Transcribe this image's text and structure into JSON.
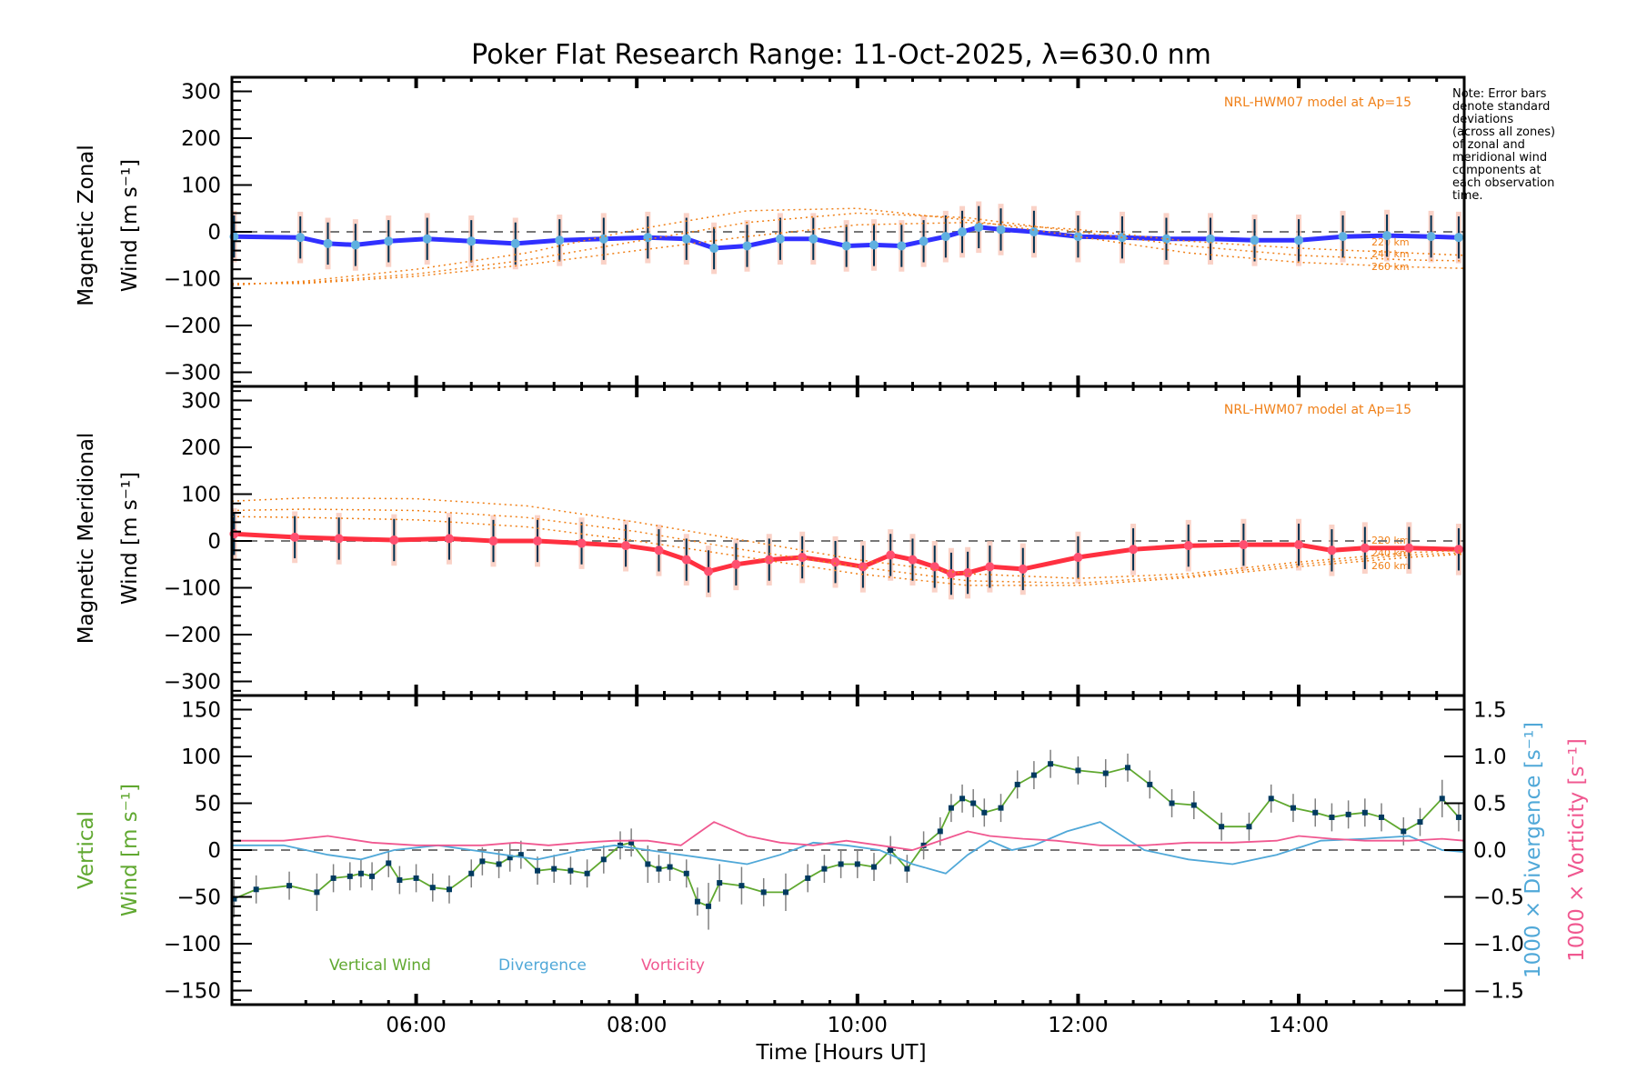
{
  "chart_data": [
    {
      "type": "line",
      "panel": "zonal",
      "title": "Poker Flat Research Range: 11-Oct-2025, λ=630.0 nm",
      "ylabel_line1": "Magnetic Zonal",
      "ylabel_line2": "Wind [m s⁻¹]",
      "ylim": [
        -330,
        330
      ],
      "yticks": [
        -300,
        -200,
        -100,
        0,
        100,
        200,
        300
      ],
      "xlim": [
        4.33,
        15.5
      ],
      "model_label": "NRL-HWM07 model at Ap=15",
      "model_altitudes": [
        "220 km",
        "240 km",
        "260 km"
      ],
      "series": [
        {
          "name": "Zonal wind (mean)",
          "color": "#3030ff",
          "x": [
            4.35,
            4.95,
            5.2,
            5.45,
            5.75,
            6.1,
            6.5,
            6.9,
            7.3,
            7.7,
            8.1,
            8.45,
            8.7,
            9.0,
            9.3,
            9.6,
            9.9,
            10.15,
            10.4,
            10.6,
            10.8,
            10.95,
            11.1,
            11.3,
            11.6,
            12.0,
            12.4,
            12.8,
            13.2,
            13.6,
            14.0,
            14.4,
            14.8,
            15.2,
            15.45
          ],
          "y": [
            -10,
            -12,
            -25,
            -28,
            -20,
            -15,
            -20,
            -25,
            -18,
            -15,
            -12,
            -15,
            -35,
            -30,
            -15,
            -15,
            -30,
            -28,
            -30,
            -20,
            -10,
            0,
            10,
            5,
            0,
            -10,
            -12,
            -15,
            -15,
            -18,
            -18,
            -10,
            -8,
            -10,
            -12
          ]
        },
        {
          "name": "HWM07 220 km",
          "color": "#f08018",
          "x": [
            4.33,
            5,
            6,
            7,
            8,
            9,
            10,
            11,
            12,
            13,
            14,
            15,
            15.5
          ],
          "y": [
            -110,
            -110,
            -95,
            -70,
            -40,
            -10,
            15,
            20,
            5,
            -20,
            -35,
            -45,
            -50
          ]
        },
        {
          "name": "HWM07 240 km",
          "color": "#f08018",
          "x": [
            4.33,
            5,
            6,
            7,
            8,
            9,
            10,
            11,
            12,
            13,
            14,
            15,
            15.5
          ],
          "y": [
            -112,
            -108,
            -90,
            -60,
            -20,
            20,
            40,
            30,
            0,
            -30,
            -50,
            -60,
            -62
          ]
        },
        {
          "name": "HWM07 260 km",
          "color": "#f08018",
          "x": [
            4.33,
            5,
            6,
            7,
            8,
            9,
            10,
            11,
            12,
            13,
            14,
            15,
            15.5
          ],
          "y": [
            -114,
            -105,
            -80,
            -45,
            5,
            45,
            50,
            25,
            -10,
            -45,
            -65,
            -75,
            -78
          ]
        }
      ]
    },
    {
      "type": "line",
      "panel": "meridional",
      "ylabel_line1": "Magnetic Meridional",
      "ylabel_line2": "Wind [m s⁻¹]",
      "ylim": [
        -330,
        330
      ],
      "yticks": [
        -300,
        -200,
        -100,
        0,
        100,
        200,
        300
      ],
      "xlim": [
        4.33,
        15.5
      ],
      "model_label": "NRL-HWM07 model at Ap=15",
      "model_altitudes": [
        "220 km",
        "240 km",
        "260 km"
      ],
      "series": [
        {
          "name": "Meridional wind (mean)",
          "color": "#ff3040",
          "x": [
            4.35,
            4.9,
            5.3,
            5.8,
            6.3,
            6.7,
            7.1,
            7.5,
            7.9,
            8.2,
            8.45,
            8.65,
            8.9,
            9.2,
            9.5,
            9.8,
            10.05,
            10.3,
            10.5,
            10.7,
            10.85,
            11.0,
            11.2,
            11.5,
            12.0,
            12.5,
            13.0,
            13.5,
            14.0,
            14.3,
            14.6,
            15.0,
            15.45
          ],
          "y": [
            15,
            8,
            5,
            2,
            5,
            0,
            0,
            -5,
            -10,
            -20,
            -40,
            -65,
            -50,
            -40,
            -35,
            -45,
            -55,
            -30,
            -40,
            -55,
            -70,
            -68,
            -55,
            -60,
            -35,
            -18,
            -10,
            -8,
            -8,
            -20,
            -15,
            -15,
            -18
          ]
        },
        {
          "name": "HWM07 220 km",
          "color": "#f08018",
          "x": [
            4.33,
            5,
            6,
            7,
            8,
            9,
            10,
            11,
            12,
            13,
            14,
            15,
            15.5
          ],
          "y": [
            85,
            92,
            90,
            75,
            40,
            0,
            -40,
            -70,
            -80,
            -70,
            -45,
            -25,
            -20
          ]
        },
        {
          "name": "HWM07 240 km",
          "color": "#f08018",
          "x": [
            4.33,
            5,
            6,
            7,
            8,
            9,
            10,
            11,
            12,
            13,
            14,
            15,
            15.5
          ],
          "y": [
            65,
            68,
            65,
            50,
            20,
            -20,
            -55,
            -85,
            -90,
            -75,
            -50,
            -30,
            -25
          ]
        },
        {
          "name": "HWM07 260 km",
          "color": "#f08018",
          "x": [
            4.33,
            5,
            6,
            7,
            8,
            9,
            10,
            11,
            12,
            13,
            14,
            15,
            15.5
          ],
          "y": [
            52,
            50,
            45,
            30,
            0,
            -35,
            -70,
            -95,
            -95,
            -78,
            -55,
            -35,
            -28
          ]
        }
      ]
    },
    {
      "type": "line",
      "panel": "vertical",
      "ylabel_left_line1": "Vertical",
      "ylabel_left_line2": "Wind [m s⁻¹]",
      "ylabel_right1": "1000 × Divergence [s⁻¹]",
      "ylabel_right2": "1000 × Vorticity [s⁻¹]",
      "ylim": [
        -165,
        165
      ],
      "yticks": [
        -150,
        -100,
        -50,
        0,
        50,
        100,
        150
      ],
      "ylim_right": [
        -1.65,
        1.65
      ],
      "yticks_right": [
        "-1.5",
        "-1.0",
        "-0.5",
        "0.0",
        "0.5",
        "1.0",
        "1.5"
      ],
      "xlim": [
        4.33,
        15.5
      ],
      "xticks": [
        "06:00",
        "08:00",
        "10:00",
        "12:00",
        "14:00"
      ],
      "xtick_values": [
        6,
        8,
        10,
        12,
        14
      ],
      "xlabel": "Time [Hours UT]",
      "legend": [
        {
          "label": "Vertical Wind",
          "color": "#60a830"
        },
        {
          "label": "Divergence",
          "color": "#50a8d8"
        },
        {
          "label": "Vorticity",
          "color": "#f05890"
        }
      ],
      "legend_position": "bottom-left",
      "series": [
        {
          "name": "Vertical Wind",
          "color": "#60a830",
          "x": [
            4.35,
            4.55,
            4.85,
            5.1,
            5.25,
            5.4,
            5.5,
            5.6,
            5.75,
            5.85,
            6.0,
            6.15,
            6.3,
            6.5,
            6.6,
            6.75,
            6.85,
            6.95,
            7.1,
            7.25,
            7.4,
            7.55,
            7.7,
            7.85,
            7.95,
            8.1,
            8.2,
            8.3,
            8.45,
            8.55,
            8.65,
            8.75,
            8.95,
            9.15,
            9.35,
            9.55,
            9.7,
            9.85,
            10.0,
            10.15,
            10.3,
            10.45,
            10.6,
            10.75,
            10.85,
            10.95,
            11.05,
            11.15,
            11.3,
            11.45,
            11.6,
            11.75,
            12.0,
            12.25,
            12.45,
            12.65,
            12.85,
            13.05,
            13.3,
            13.55,
            13.75,
            13.95,
            14.15,
            14.3,
            14.45,
            14.6,
            14.75,
            14.95,
            15.1,
            15.3,
            15.45
          ],
          "y": [
            -52,
            -42,
            -38,
            -45,
            -30,
            -28,
            -25,
            -28,
            -14,
            -32,
            -30,
            -40,
            -42,
            -25,
            -12,
            -15,
            -8,
            -5,
            -22,
            -20,
            -22,
            -25,
            -10,
            5,
            8,
            -15,
            -20,
            -18,
            -25,
            -55,
            -60,
            -35,
            -38,
            -45,
            -45,
            -30,
            -20,
            -15,
            -15,
            -18,
            0,
            -20,
            5,
            20,
            45,
            55,
            50,
            40,
            45,
            70,
            80,
            92,
            85,
            82,
            88,
            70,
            50,
            48,
            25,
            25,
            55,
            45,
            40,
            35,
            38,
            40,
            35,
            20,
            30,
            55,
            35
          ],
          "err": [
            20,
            15,
            15,
            20,
            15,
            15,
            15,
            15,
            15,
            15,
            15,
            15,
            15,
            15,
            15,
            15,
            15,
            15,
            15,
            15,
            15,
            15,
            15,
            15,
            15,
            20,
            15,
            15,
            15,
            15,
            25,
            20,
            20,
            15,
            20,
            15,
            15,
            15,
            15,
            15,
            15,
            15,
            15,
            15,
            15,
            15,
            15,
            15,
            15,
            15,
            15,
            15,
            15,
            15,
            15,
            15,
            15,
            15,
            15,
            15,
            15,
            15,
            15,
            15,
            15,
            15,
            15,
            15,
            15,
            20,
            15
          ]
        },
        {
          "name": "Divergence",
          "color": "#50a8d8",
          "axis": "right",
          "x": [
            4.33,
            4.8,
            5.2,
            5.5,
            5.8,
            6.2,
            6.5,
            6.8,
            7.1,
            7.5,
            7.8,
            8.1,
            8.4,
            8.7,
            9.0,
            9.3,
            9.6,
            9.9,
            10.2,
            10.5,
            10.65,
            10.8,
            11.0,
            11.2,
            11.4,
            11.6,
            11.9,
            12.2,
            12.6,
            13.0,
            13.4,
            13.8,
            14.2,
            14.6,
            15.0,
            15.3,
            15.5
          ],
          "y": [
            0.05,
            0.05,
            -0.05,
            -0.1,
            0.0,
            0.05,
            0.0,
            -0.05,
            -0.1,
            0.0,
            0.05,
            0.0,
            -0.05,
            -0.1,
            -0.15,
            -0.05,
            0.08,
            0.05,
            0.0,
            -0.15,
            -0.2,
            -0.25,
            -0.05,
            0.1,
            0.0,
            0.05,
            0.2,
            0.3,
            0.0,
            -0.1,
            -0.15,
            -0.05,
            0.1,
            0.12,
            0.15,
            0.0,
            -0.02
          ]
        },
        {
          "name": "Vorticity",
          "color": "#f05890",
          "axis": "right",
          "x": [
            4.33,
            4.8,
            5.2,
            5.6,
            6.0,
            6.3,
            6.6,
            6.9,
            7.2,
            7.5,
            7.8,
            8.1,
            8.4,
            8.7,
            9.0,
            9.3,
            9.6,
            9.9,
            10.2,
            10.5,
            10.8,
            11.0,
            11.2,
            11.5,
            11.8,
            12.2,
            12.6,
            13.0,
            13.4,
            13.8,
            14.0,
            14.3,
            14.6,
            15.0,
            15.3,
            15.5
          ],
          "y": [
            0.1,
            0.1,
            0.15,
            0.08,
            0.05,
            0.05,
            0.05,
            0.08,
            0.05,
            0.08,
            0.1,
            0.1,
            0.05,
            0.3,
            0.15,
            0.08,
            0.05,
            0.1,
            0.05,
            0.0,
            0.12,
            0.2,
            0.15,
            0.12,
            0.1,
            0.05,
            0.05,
            0.08,
            0.08,
            0.1,
            0.15,
            0.12,
            0.1,
            0.1,
            0.12,
            0.1
          ]
        }
      ]
    }
  ],
  "note": [
    "Note: Error bars",
    "denote standard",
    "deviations",
    "(across all zones)",
    "of zonal and",
    "meridional wind",
    "components at",
    "each observation",
    "time."
  ]
}
